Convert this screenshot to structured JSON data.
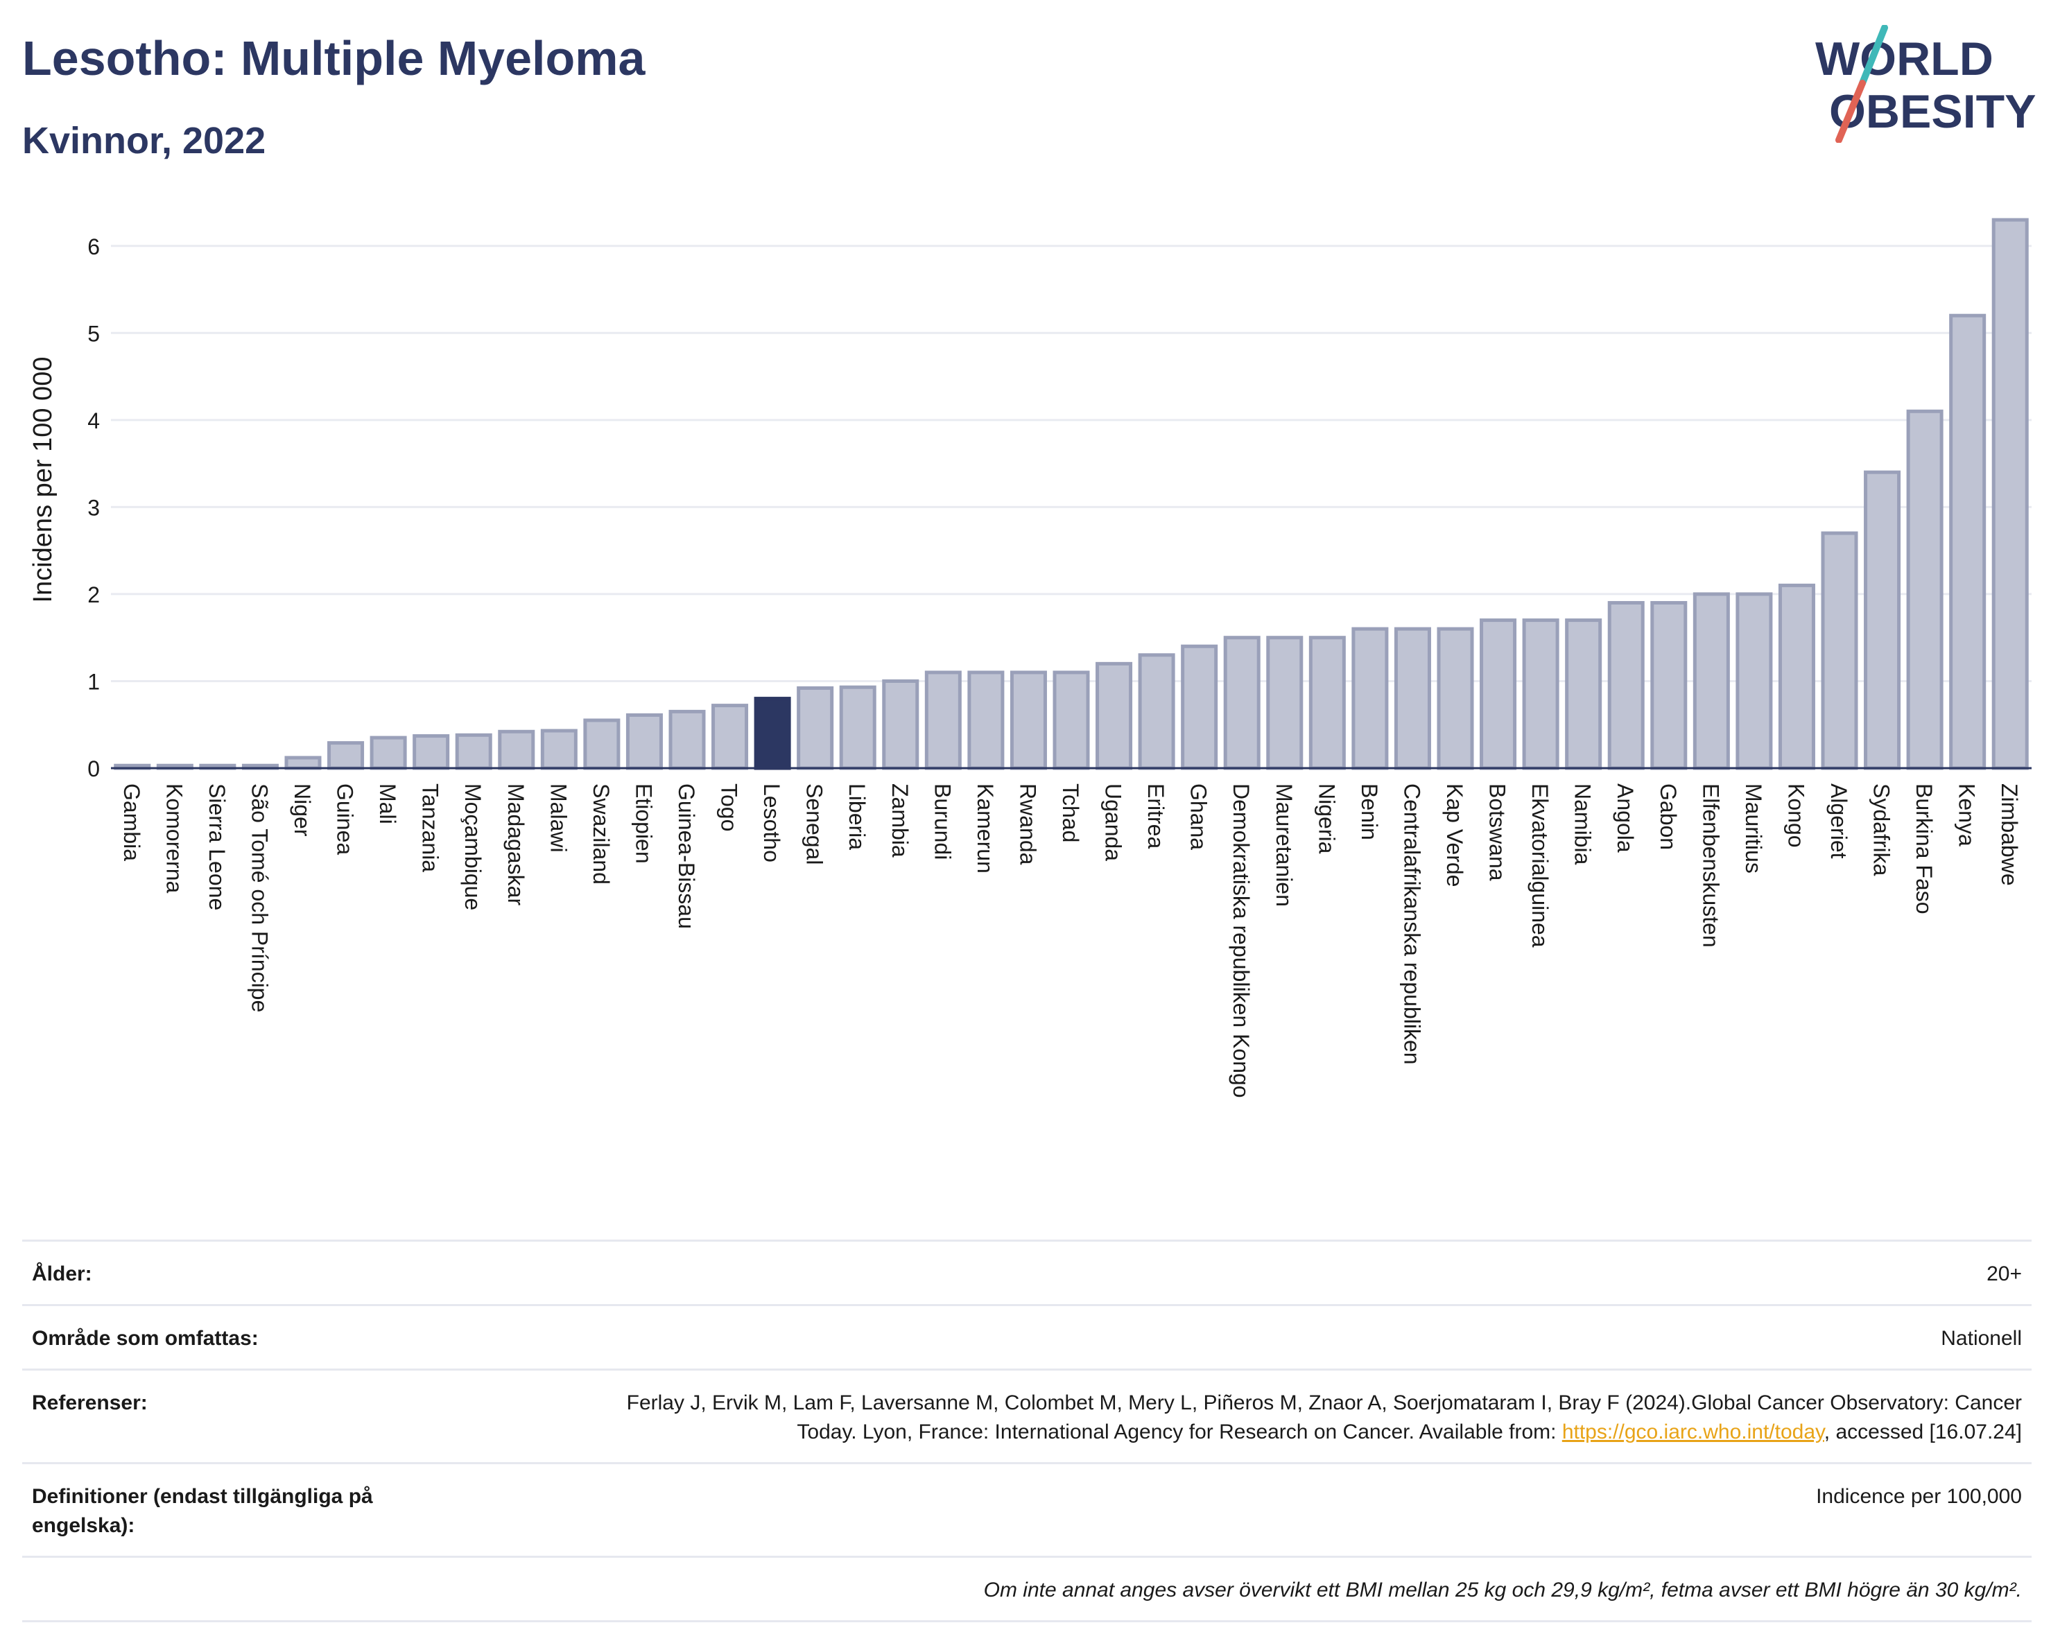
{
  "header": {
    "title": "Lesotho: Multiple Myeloma",
    "subtitle": "Kvinnor, 2022"
  },
  "logo": {
    "line1": "WORLD",
    "line2": "OBESITY",
    "accent_teal": "#3fb8b8",
    "accent_red": "#e06355"
  },
  "colors": {
    "bar": "#bfc3d3",
    "bar_stroke": "#9aa0b9",
    "highlight": "#2c3762",
    "grid": "#e9ebf1",
    "axis": "#2c3762"
  },
  "chart_data": {
    "type": "bar",
    "ylabel": "Incidens per 100 000",
    "ylim": [
      0,
      6.5
    ],
    "yticks": [
      0,
      1,
      2,
      3,
      4,
      5,
      6
    ],
    "highlight": "Lesotho",
    "grid": true,
    "categories": [
      "Gambia",
      "Komorerna",
      "Sierra Leone",
      "São Tomé och Príncipe",
      "Niger",
      "Guinea",
      "Mali",
      "Tanzania",
      "Moçambique",
      "Madagaskar",
      "Malawi",
      "Swaziland",
      "Etiopien",
      "Guinea-Bissau",
      "Togo",
      "Lesotho",
      "Senegal",
      "Liberia",
      "Zambia",
      "Burundi",
      "Kamerun",
      "Rwanda",
      "Tchad",
      "Uganda",
      "Eritrea",
      "Ghana",
      "Demokratiska republiken Kongo",
      "Mauretanien",
      "Nigeria",
      "Benin",
      "Centralafrikanska republiken",
      "Kap Verde",
      "Botswana",
      "Ekvatorialguinea",
      "Namibia",
      "Angola",
      "Gabon",
      "Elfenbenskusten",
      "Mauritius",
      "Kongo",
      "Algeriet",
      "Sydafrika",
      "Burkina Faso",
      "Kenya",
      "Zimbabwe"
    ],
    "values": [
      0.03,
      0.03,
      0.03,
      0.03,
      0.12,
      0.29,
      0.35,
      0.37,
      0.38,
      0.42,
      0.43,
      0.55,
      0.61,
      0.65,
      0.72,
      0.8,
      0.92,
      0.93,
      1.0,
      1.1,
      1.1,
      1.1,
      1.1,
      1.2,
      1.3,
      1.4,
      1.5,
      1.5,
      1.5,
      1.6,
      1.6,
      1.6,
      1.7,
      1.7,
      1.7,
      1.9,
      1.9,
      2.0,
      2.0,
      2.1,
      2.7,
      3.4,
      4.1,
      5.2,
      6.3
    ]
  },
  "info": {
    "age_label": "Ålder:",
    "age_value": "20+",
    "area_label": "Område som omfattas:",
    "area_value": "Nationell",
    "ref_label": "Referenser:",
    "ref_text_1": "Ferlay J, Ervik M, Lam F, Laversanne M, Colombet M, Mery L, Piñeros M, Znaor A, Soerjomataram I, Bray F (2024).Global Cancer Observatory: Cancer Today. Lyon, France: International Agency for Research on Cancer. Available from: ",
    "ref_link": "https://gco.iarc.who.int/today",
    "ref_text_2": ", accessed [16.07.24]",
    "def_label": "Definitioner (endast tillgängliga på engelska):",
    "def_value": "Indicence per 100,000",
    "note": "Om inte annat anges avser övervikt ett BMI mellan 25 kg och 29,9 kg/m², fetma avser ett BMI högre än 30 kg/m²."
  }
}
